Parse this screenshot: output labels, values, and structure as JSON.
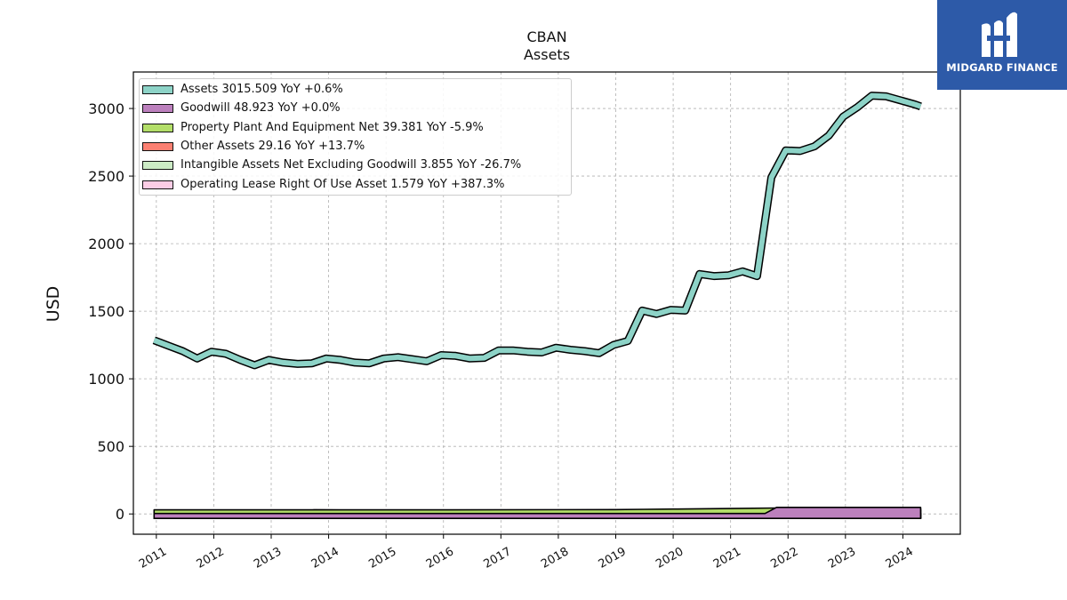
{
  "header": {
    "ticker": "CBAN",
    "subtitle": "Assets"
  },
  "logo": {
    "text": "MIDGARD FINANCE",
    "color": "#2d5aa8"
  },
  "chart_data": {
    "type": "area",
    "title": "CBAN",
    "subtitle": "Assets",
    "ylabel": "USD",
    "xlabel": "",
    "xlim": [
      2010.6,
      2025.0
    ],
    "ylim": [
      -150,
      3270
    ],
    "yticks": [
      0,
      500,
      1000,
      1500,
      2000,
      2500,
      3000
    ],
    "xticks": [
      "2011",
      "2012",
      "2013",
      "2014",
      "2015",
      "2016",
      "2017",
      "2018",
      "2019",
      "2020",
      "2021",
      "2022",
      "2023",
      "2024"
    ],
    "grid": true,
    "legend_position": "top-left",
    "series": [
      {
        "name": "Assets",
        "legend": "Assets  3015.509 YoY +0.6%",
        "color": "#8dd3c7",
        "x": [
          2010.96,
          2011.21,
          2011.46,
          2011.71,
          2011.96,
          2012.21,
          2012.46,
          2012.71,
          2012.96,
          2013.21,
          2013.46,
          2013.71,
          2013.96,
          2014.21,
          2014.46,
          2014.71,
          2014.96,
          2015.21,
          2015.46,
          2015.71,
          2015.96,
          2016.21,
          2016.46,
          2016.71,
          2016.96,
          2017.21,
          2017.46,
          2017.71,
          2017.96,
          2018.21,
          2018.46,
          2018.71,
          2018.96,
          2019.21,
          2019.46,
          2019.71,
          2019.96,
          2020.21,
          2020.46,
          2020.71,
          2020.96,
          2021.21,
          2021.46,
          2021.71,
          2021.96,
          2022.21,
          2022.46,
          2022.71,
          2022.96,
          2023.21,
          2023.46,
          2023.71,
          2023.96,
          2024.21,
          2024.31
        ],
        "values": [
          1285,
          1245,
          1205,
          1150,
          1200,
          1185,
          1140,
          1100,
          1140,
          1120,
          1110,
          1115,
          1150,
          1140,
          1120,
          1115,
          1150,
          1160,
          1145,
          1130,
          1175,
          1170,
          1150,
          1155,
          1210,
          1210,
          1200,
          1195,
          1230,
          1215,
          1205,
          1190,
          1250,
          1280,
          1505,
          1480,
          1510,
          1505,
          1775,
          1760,
          1765,
          1795,
          1760,
          2490,
          2690,
          2685,
          2720,
          2800,
          2940,
          3010,
          3095,
          3090,
          3060,
          3030,
          3015.509
        ]
      },
      {
        "name": "Goodwill",
        "legend": "Goodwill  48.923 YoY +0.0%",
        "color": "#bc80bd",
        "x": [
          2010.96,
          2019.5,
          2021.6,
          2021.8,
          2024.31
        ],
        "values": [
          0,
          0,
          0,
          48.923,
          48.923
        ]
      },
      {
        "name": "Property Plant And Equipment Net",
        "legend": "Property Plant And Equipment Net  39.381 YoY -5.9%",
        "color": "#b3de69",
        "x": [
          2010.96,
          2015.0,
          2019.0,
          2019.5,
          2020.0,
          2021.0,
          2021.8,
          2022.5,
          2023.0,
          2024.31
        ],
        "values": [
          30,
          30,
          32,
          34,
          36,
          40,
          44,
          43,
          42,
          39.381
        ]
      },
      {
        "name": "Other Assets",
        "legend": "Other Assets  29.16 YoY +13.7%",
        "color": "#fb8072",
        "x": [
          2010.96,
          2012.0,
          2013.5,
          2013.75,
          2014.5,
          2015.5,
          2017.0,
          2018.5,
          2019.2,
          2019.5,
          2020.0,
          2021.0,
          2021.8,
          2022.5,
          2023.0,
          2024.31
        ],
        "values": [
          22,
          20,
          18,
          30,
          28,
          25,
          23,
          25,
          20,
          12,
          12,
          14,
          20,
          26,
          28,
          29.16
        ]
      },
      {
        "name": "Intangible Assets Net Excluding Goodwill",
        "legend": "Intangible Assets Net Excluding Goodwill  3.855 YoY -26.7%",
        "color": "#ccebc5",
        "x": [
          2010.96,
          2019.2,
          2019.5,
          2020.0,
          2021.0,
          2022.0,
          2023.0,
          2024.31
        ],
        "values": [
          0,
          0,
          8,
          10,
          9,
          7,
          5,
          3.855
        ]
      },
      {
        "name": "Operating Lease Right Of Use Asset",
        "legend": "Operating Lease Right Of Use Asset  1.579 YoY +387.3%",
        "color": "#fccde5",
        "x": [
          2019.9,
          2020.0,
          2024.06,
          2024.07,
          2024.31
        ],
        "values": [
          0,
          25,
          25,
          0,
          1.579
        ]
      }
    ]
  }
}
